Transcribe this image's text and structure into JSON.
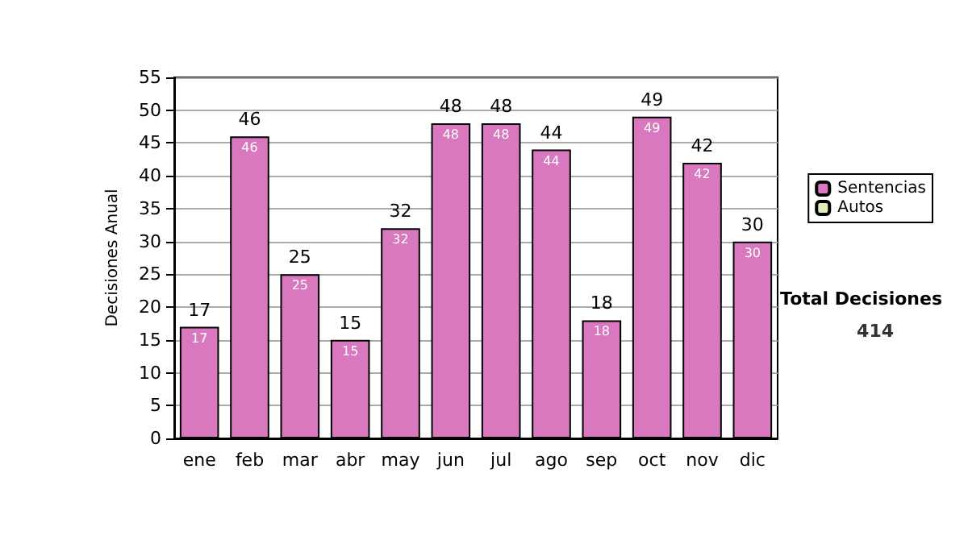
{
  "chart_data": {
    "type": "bar",
    "ylabel": "Decisiones Anual",
    "categories": [
      "ene",
      "feb",
      "mar",
      "abr",
      "may",
      "jun",
      "jul",
      "ago",
      "sep",
      "oct",
      "nov",
      "dic"
    ],
    "series": [
      {
        "name": "Sentencias",
        "color": "#d978be",
        "values": [
          17,
          46,
          25,
          15,
          32,
          48,
          48,
          44,
          18,
          49,
          42,
          30
        ]
      },
      {
        "name": "Autos",
        "color": "#ddeebb",
        "values": [
          null,
          null,
          null,
          null,
          null,
          null,
          null,
          null,
          null,
          null,
          null,
          null
        ]
      }
    ],
    "stacked": true,
    "data_labels": true,
    "totals": [
      "17",
      "46",
      "25",
      "15",
      "32",
      "48",
      "48",
      "44",
      "18",
      "49",
      "42",
      "30"
    ],
    "ylim": [
      0,
      55
    ],
    "yticks": [
      0,
      5,
      10,
      15,
      20,
      25,
      30,
      35,
      40,
      45,
      50,
      55
    ],
    "grid": "y",
    "legend": "right",
    "annotations": [
      "Total Decisiones",
      "414"
    ]
  }
}
